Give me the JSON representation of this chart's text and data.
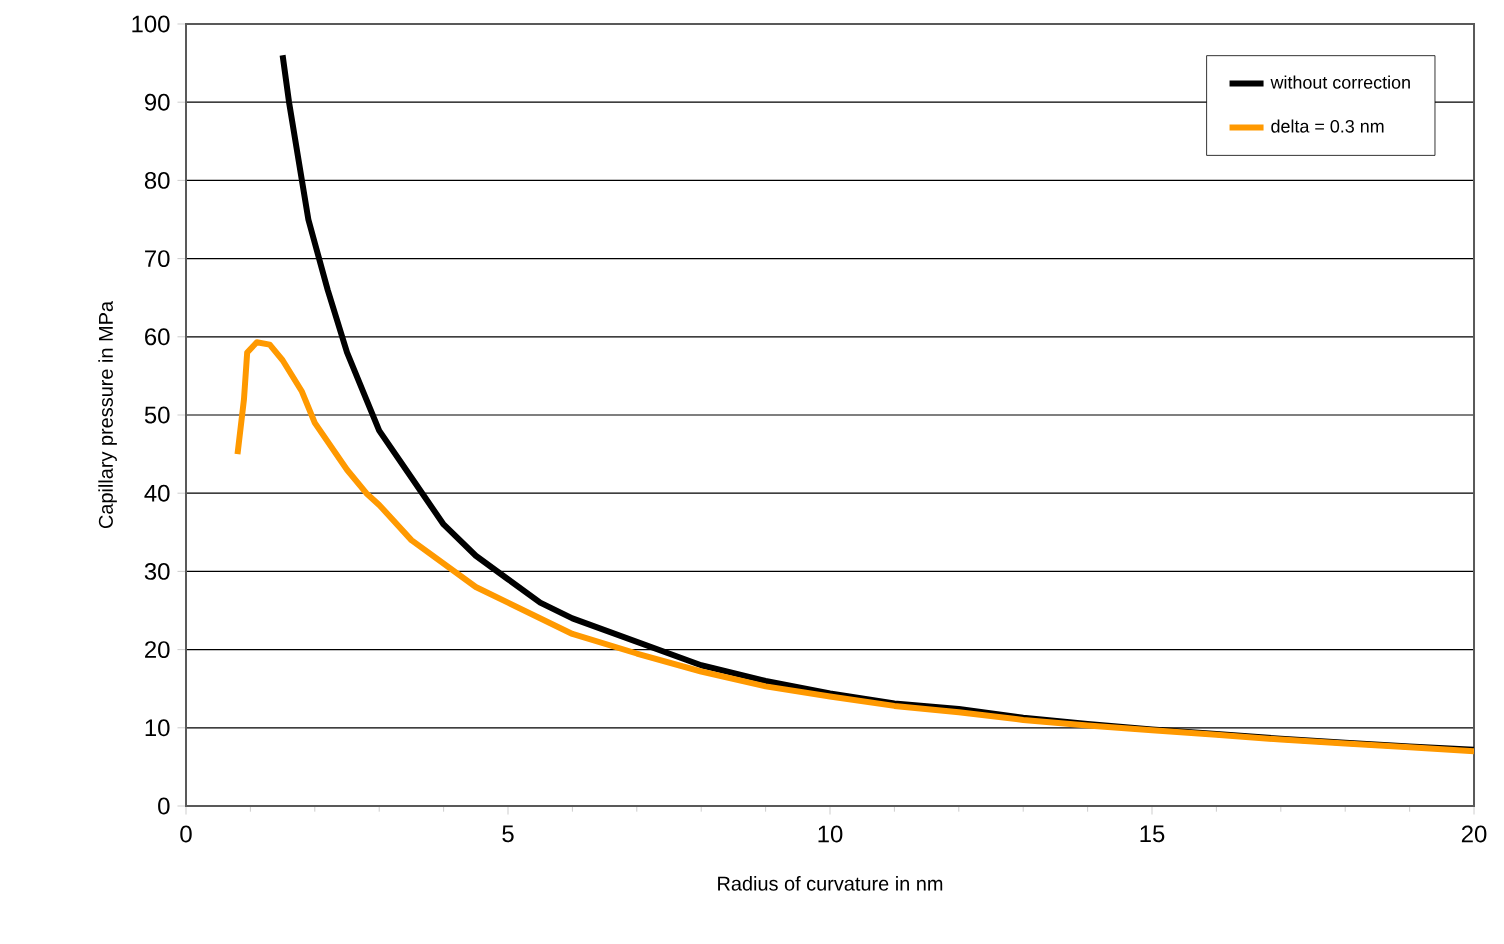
{
  "chart_data": {
    "type": "line",
    "xlabel": "Radius of curvature in nm",
    "ylabel": "Capillary pressure in MPa",
    "xlim": [
      0,
      20
    ],
    "ylim": [
      0,
      100
    ],
    "xticks": [
      0,
      5,
      10,
      15,
      20
    ],
    "yticks": [
      0,
      10,
      20,
      30,
      40,
      50,
      60,
      70,
      80,
      90,
      100
    ],
    "grid": "y",
    "legend": "top right",
    "marker": "none",
    "line_style": "solid",
    "series": [
      {
        "name": "without correction",
        "color": "#000000",
        "x": [
          1.5,
          1.6,
          1.8,
          1.9,
          2,
          2.2,
          2.5,
          2.8,
          3,
          3.5,
          4,
          4.5,
          5,
          5.5,
          6,
          7,
          8,
          9,
          10,
          11,
          12,
          13,
          14,
          15,
          16,
          17,
          18,
          19,
          20
        ],
        "values": [
          96,
          90,
          80,
          75,
          72,
          66,
          58,
          52,
          48,
          42,
          36,
          32,
          29,
          26,
          24,
          21,
          18,
          16,
          14.4,
          13.1,
          12.4,
          11.3,
          10.5,
          9.8,
          9.2,
          8.6,
          8.1,
          7.6,
          7.2
        ]
      },
      {
        "name": "delta = 0.3 nm",
        "color": "#ff9900",
        "x": [
          0.8,
          0.9,
          0.95,
          1.1,
          1.3,
          1.5,
          1.8,
          2,
          2.5,
          2.8,
          3,
          3.5,
          4,
          4.5,
          5,
          5.5,
          6,
          7,
          8,
          9,
          10,
          11,
          12,
          13,
          14,
          15,
          16,
          17,
          18,
          19,
          20
        ],
        "values": [
          45,
          52,
          58,
          59.3,
          59,
          57,
          53,
          49,
          43,
          40,
          38.5,
          34,
          31,
          28,
          26,
          24,
          22,
          19.5,
          17.2,
          15.3,
          14,
          12.8,
          12,
          11,
          10.3,
          9.7,
          9.1,
          8.5,
          8,
          7.5,
          7
        ]
      }
    ]
  }
}
